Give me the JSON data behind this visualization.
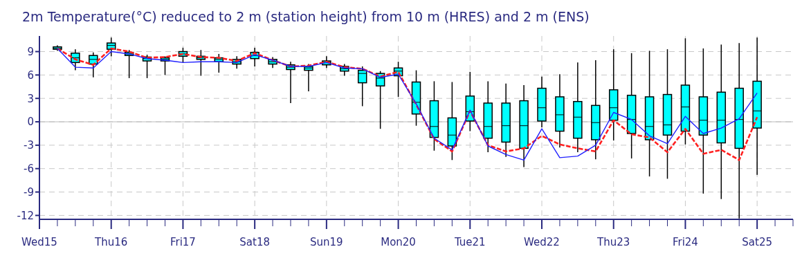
{
  "chart_data": {
    "type": "box",
    "title": "2m Temperature(°C) reduced to 2 m (station height) from 10 m (HRES) and 2 m (ENS)",
    "categories": [
      "Wed15",
      null,
      null,
      null,
      "Thu16",
      null,
      null,
      null,
      "Fri17",
      null,
      null,
      null,
      "Sat18",
      null,
      null,
      null,
      "Sun19",
      null,
      null,
      null,
      "Mon20",
      null,
      null,
      null,
      "Tue21",
      null,
      null,
      null,
      "Wed22",
      null,
      null,
      null,
      "Thu23",
      null,
      null,
      null,
      "Fri24",
      null,
      null,
      null,
      "Sat25",
      null,
      null
    ],
    "color": "#00ffff",
    "boxes": [
      null,
      {
        "low": 9.1,
        "q1": 9.3,
        "median": 9.4,
        "q3": 9.6,
        "high": 9.8
      },
      {
        "low": 6.6,
        "q1": 7.6,
        "median": 8.2,
        "q3": 8.8,
        "high": 9.3
      },
      {
        "low": 5.7,
        "q1": 7.4,
        "median": 8.0,
        "q3": 8.5,
        "high": 8.9
      },
      {
        "low": 8.4,
        "q1": 9.3,
        "median": 9.8,
        "q3": 10.1,
        "high": 10.8
      },
      {
        "low": 5.6,
        "q1": 8.5,
        "median": 8.7,
        "q3": 8.9,
        "high": 9.2
      },
      {
        "low": 5.6,
        "q1": 7.8,
        "median": 8.1,
        "q3": 8.3,
        "high": 8.6
      },
      {
        "low": 6.0,
        "q1": 7.8,
        "median": 8.0,
        "q3": 8.2,
        "high": 8.4
      },
      {
        "low": 7.6,
        "q1": 8.4,
        "median": 8.7,
        "q3": 9.0,
        "high": 9.5
      },
      {
        "low": 5.9,
        "q1": 8.0,
        "median": 8.2,
        "q3": 8.4,
        "high": 9.2
      },
      {
        "low": 6.3,
        "q1": 7.7,
        "median": 8.0,
        "q3": 8.2,
        "high": 8.7
      },
      {
        "low": 6.8,
        "q1": 7.4,
        "median": 7.7,
        "q3": 8.0,
        "high": 8.4
      },
      {
        "low": 7.1,
        "q1": 8.1,
        "median": 8.5,
        "q3": 8.9,
        "high": 9.5
      },
      {
        "low": 6.9,
        "q1": 7.4,
        "median": 7.7,
        "q3": 8.0,
        "high": 8.3
      },
      {
        "low": 2.4,
        "q1": 6.7,
        "median": 7.0,
        "q3": 7.3,
        "high": 7.7
      },
      {
        "low": 3.9,
        "q1": 6.6,
        "median": 6.9,
        "q3": 7.1,
        "high": 7.4
      },
      {
        "low": 6.9,
        "q1": 7.3,
        "median": 7.6,
        "q3": 7.8,
        "high": 8.4
      },
      {
        "low": 5.9,
        "q1": 6.5,
        "median": 6.8,
        "q3": 7.1,
        "high": 7.4
      },
      {
        "low": 2.0,
        "q1": 5.0,
        "median": 6.2,
        "q3": 6.6,
        "high": 7.1
      },
      {
        "low": -0.9,
        "q1": 4.6,
        "median": 5.6,
        "q3": 6.2,
        "high": 6.5
      },
      {
        "low": 3.2,
        "q1": 5.9,
        "median": 6.5,
        "q3": 6.9,
        "high": 7.7
      },
      {
        "low": -0.5,
        "q1": 1.0,
        "median": 2.5,
        "q3": 5.1,
        "high": 6.6
      },
      {
        "low": -3.7,
        "q1": -2.0,
        "median": -0.6,
        "q3": 2.7,
        "high": 5.2
      },
      {
        "low": -4.9,
        "q1": -3.1,
        "median": -1.7,
        "q3": 0.5,
        "high": 5.1
      },
      {
        "low": -1.2,
        "q1": 0.1,
        "median": 1.3,
        "q3": 3.3,
        "high": 6.4
      },
      {
        "low": -3.9,
        "q1": -2.1,
        "median": -0.6,
        "q3": 2.4,
        "high": 5.2
      },
      {
        "low": -4.5,
        "q1": -2.6,
        "median": -0.5,
        "q3": 2.4,
        "high": 4.9
      },
      {
        "low": -5.8,
        "q1": -3.4,
        "median": -0.5,
        "q3": 2.7,
        "high": 4.7
      },
      {
        "low": -0.7,
        "q1": 0.1,
        "median": 1.8,
        "q3": 4.3,
        "high": 5.8
      },
      {
        "low": -3.3,
        "q1": -1.2,
        "median": 0.9,
        "q3": 3.2,
        "high": 6.1
      },
      {
        "low": -3.9,
        "q1": -2.1,
        "median": 0.6,
        "q3": 2.6,
        "high": 7.6
      },
      {
        "low": -4.8,
        "q1": -2.3,
        "median": -0.1,
        "q3": 2.1,
        "high": 7.9
      },
      {
        "low": -2.4,
        "q1": 0.2,
        "median": 1.8,
        "q3": 4.1,
        "high": 9.3
      },
      {
        "low": -4.7,
        "q1": -1.5,
        "median": 0.3,
        "q3": 3.4,
        "high": 8.8
      },
      {
        "low": -7.0,
        "q1": -2.3,
        "median": -0.6,
        "q3": 3.2,
        "high": 9.1
      },
      {
        "low": -7.3,
        "q1": -1.7,
        "median": -0.4,
        "q3": 3.5,
        "high": 9.3
      },
      {
        "low": -2.9,
        "q1": -1.2,
        "median": 1.9,
        "q3": 4.7,
        "high": 10.7
      },
      {
        "low": -9.2,
        "q1": -1.7,
        "median": 0.2,
        "q3": 3.2,
        "high": 9.4
      },
      {
        "low": -9.9,
        "q1": -2.7,
        "median": 0.2,
        "q3": 3.8,
        "high": 9.9
      },
      {
        "low": -12.4,
        "q1": -3.4,
        "median": 0.3,
        "q3": 4.3,
        "high": 10.1
      },
      {
        "low": -6.8,
        "q1": -0.8,
        "median": 1.4,
        "q3": 5.2,
        "high": 10.8
      },
      null,
      null
    ],
    "series": [
      {
        "type": "line",
        "color": "#ff2020",
        "line_style": "dashed",
        "values": [
          null,
          9.4,
          8.0,
          7.3,
          9.4,
          9.0,
          8.2,
          8.3,
          8.7,
          8.3,
          8.2,
          7.8,
          8.8,
          7.9,
          7.1,
          7.2,
          7.7,
          7.0,
          6.8,
          5.8,
          6.4,
          2.2,
          -2.2,
          -3.8,
          1.4,
          -3.0,
          -3.8,
          -3.4,
          -1.8,
          -2.9,
          -3.4,
          -3.8,
          0.2,
          -1.6,
          -2.0,
          -3.9,
          -0.9,
          -4.1,
          -3.6,
          -4.9,
          0.6,
          null,
          null
        ]
      },
      {
        "type": "line",
        "color": "#2020ff",
        "line_style": "solid",
        "values": [
          null,
          9.4,
          7.0,
          6.9,
          9.0,
          8.7,
          8.1,
          7.9,
          7.6,
          7.7,
          7.7,
          7.6,
          8.6,
          7.9,
          7.1,
          7.1,
          7.6,
          6.9,
          6.8,
          5.7,
          6.1,
          2.3,
          -2.1,
          -3.6,
          1.5,
          -3.1,
          -4.2,
          -4.9,
          -0.9,
          -4.6,
          -4.4,
          -3.0,
          1.2,
          0.3,
          -1.8,
          -2.8,
          0.7,
          -1.5,
          -0.8,
          0.4,
          3.7,
          null,
          null
        ]
      }
    ],
    "ylim": [
      -12.5,
      11
    ],
    "yticks": [
      -12,
      -9,
      -6,
      -3,
      0,
      3,
      6,
      9
    ],
    "grid": true,
    "ref_lines": [
      {
        "axis": "y",
        "value": 0,
        "color": "#bbbbbb",
        "line_style": "solid"
      }
    ],
    "marker": "none"
  }
}
